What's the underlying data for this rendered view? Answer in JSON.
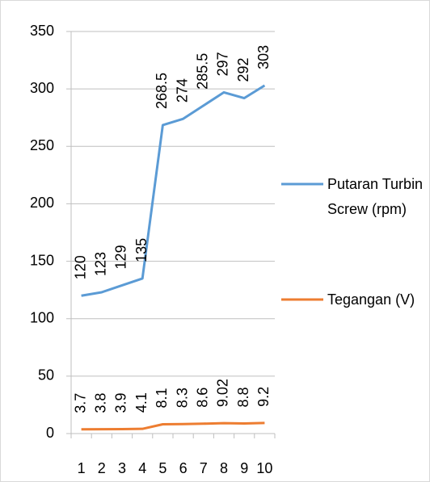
{
  "chart_data": {
    "type": "line",
    "categories": [
      1,
      2,
      3,
      4,
      5,
      6,
      7,
      8,
      9,
      10
    ],
    "series": [
      {
        "name": "Putaran Turbin Screw (rpm)",
        "color": "#5b9bd5",
        "values": [
          120,
          123,
          129,
          135,
          268.5,
          274,
          285.5,
          297,
          292,
          303
        ]
      },
      {
        "name": "Tegangan (V)",
        "color": "#ed7d31",
        "values": [
          3.7,
          3.8,
          3.9,
          4.1,
          8.1,
          8.3,
          8.6,
          9.02,
          8.8,
          9.2
        ]
      }
    ],
    "ylim": [
      0,
      350
    ],
    "yticks": [
      0,
      50,
      100,
      150,
      200,
      250,
      300,
      350
    ],
    "grid": true,
    "legend": "right"
  }
}
